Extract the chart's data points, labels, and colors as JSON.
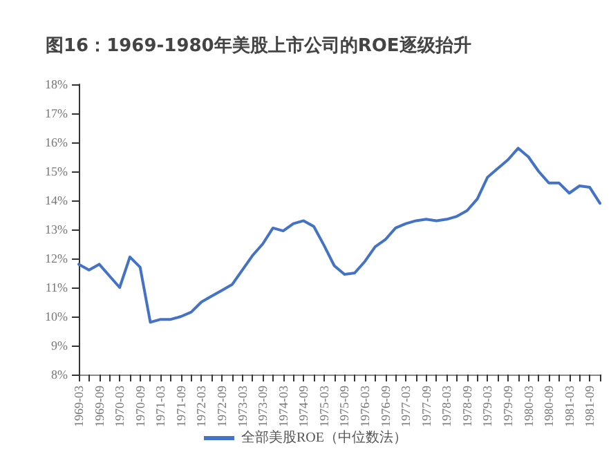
{
  "chart_data": {
    "type": "line",
    "title": "图16：1969-1980年美股上市公司的ROE逐级抬升",
    "categories": [
      "1969-03",
      null,
      "1969-09",
      null,
      "1970-03",
      null,
      "1970-09",
      null,
      "1971-03",
      null,
      "1971-09",
      null,
      "1972-03",
      null,
      "1972-09",
      null,
      "1973-03",
      null,
      "1973-09",
      null,
      "1974-03",
      null,
      "1974-09",
      null,
      "1975-03",
      null,
      "1975-09",
      null,
      "1976-03",
      null,
      "1976-09",
      null,
      "1977-03",
      null,
      "1977-09",
      null,
      "1978-03",
      null,
      "1978-09",
      null,
      "1979-03",
      null,
      "1979-09",
      null,
      "1980-03",
      null,
      "1980-09",
      null,
      "1981-03",
      null,
      "1981-09",
      null
    ],
    "series": [
      {
        "name": "全部美股ROE（中位数法）",
        "color": "#4472c4",
        "values": [
          11.8,
          11.6,
          11.8,
          11.4,
          11.0,
          12.05,
          11.7,
          9.8,
          9.9,
          9.9,
          10.0,
          10.15,
          10.5,
          10.7,
          10.9,
          11.1,
          11.6,
          12.1,
          12.5,
          13.05,
          12.95,
          13.2,
          13.3,
          13.1,
          12.45,
          11.75,
          11.45,
          11.5,
          11.9,
          12.4,
          12.65,
          13.05,
          13.2,
          13.3,
          13.35,
          13.3,
          13.35,
          13.45,
          13.65,
          14.05,
          14.8,
          15.1,
          15.4,
          15.8,
          15.5,
          15.0,
          14.6,
          14.6,
          14.25,
          14.5,
          14.45,
          13.9
        ]
      }
    ],
    "ylim": [
      8,
      18
    ],
    "yticks": [
      {
        "value": 8,
        "label": "8%"
      },
      {
        "value": 9,
        "label": "9%"
      },
      {
        "value": 10,
        "label": "10%"
      },
      {
        "value": 11,
        "label": "11%"
      },
      {
        "value": 12,
        "label": "12%"
      },
      {
        "value": 13,
        "label": "13%"
      },
      {
        "value": 14,
        "label": "14%"
      },
      {
        "value": 15,
        "label": "15%"
      },
      {
        "value": 16,
        "label": "16%"
      },
      {
        "value": 17,
        "label": "17%"
      },
      {
        "value": 18,
        "label": "18%"
      }
    ],
    "legend": "bottom",
    "grid": false,
    "marker": "none",
    "line_style": "solid"
  }
}
